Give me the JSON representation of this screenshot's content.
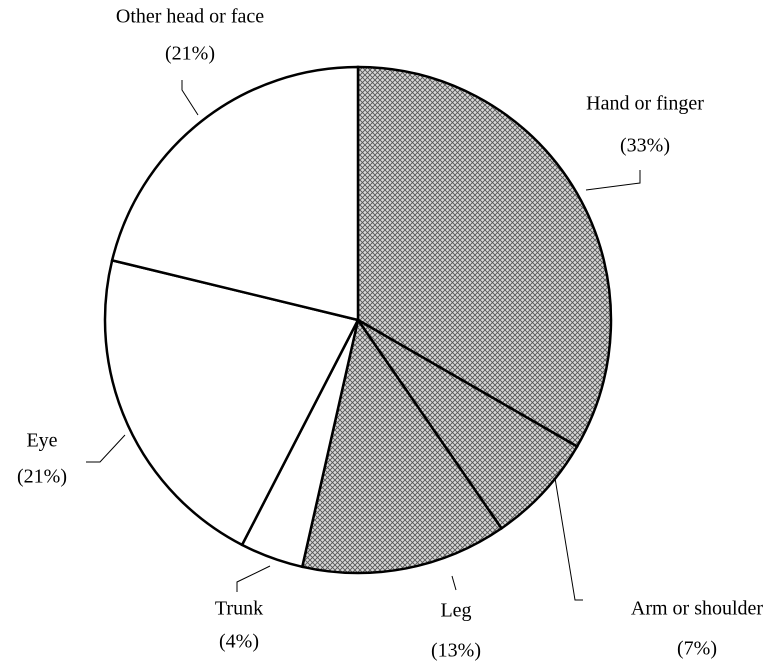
{
  "chart_data": {
    "type": "pie",
    "categories": [
      "Hand or finger",
      "Arm or shoulder",
      "Leg",
      "Trunk",
      "Eye",
      "Other head or face"
    ],
    "values": [
      33,
      7,
      13,
      4,
      21,
      21
    ],
    "value_labels": [
      "(33%)",
      "(7%)",
      "(13%)",
      "(4%)",
      "(21%)",
      "(21%)"
    ],
    "fills": [
      "crosshatch",
      "crosshatch",
      "crosshatch",
      "white",
      "white",
      "white"
    ]
  }
}
